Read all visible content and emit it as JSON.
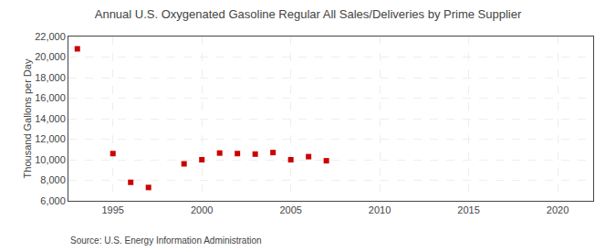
{
  "chart_data": {
    "type": "scatter",
    "title": "Annual U.S. Oxygenated Gasoline Regular All Sales/Deliveries by Prime Supplier",
    "y_label": "Thousand Gallons per Day",
    "source": "Source: U.S. Energy Information Administration",
    "x": [
      1993,
      1995,
      1996,
      1997,
      1999,
      2000,
      2001,
      2002,
      2003,
      2004,
      2005,
      2006,
      2007
    ],
    "values": [
      20800,
      10600,
      7800,
      7300,
      9600,
      10000,
      10650,
      10600,
      10550,
      10700,
      10000,
      10300,
      9900
    ],
    "color": "#cc0000",
    "marker": "square",
    "grid": true,
    "xlim": [
      1992.5,
      2022
    ],
    "xticks": [
      1995,
      2000,
      2005,
      2010,
      2015,
      2020
    ],
    "ylim": [
      6000,
      22000
    ],
    "yticks": [
      {
        "value": 6000,
        "label": "6,000"
      },
      {
        "value": 8000,
        "label": "8,000"
      },
      {
        "value": 10000,
        "label": "10,000"
      },
      {
        "value": 12000,
        "label": "12,000"
      },
      {
        "value": 14000,
        "label": "14,000"
      },
      {
        "value": 16000,
        "label": "16,000"
      },
      {
        "value": 18000,
        "label": "18,000"
      },
      {
        "value": 20000,
        "label": "20,000"
      },
      {
        "value": 22000,
        "label": "22,000"
      }
    ]
  }
}
